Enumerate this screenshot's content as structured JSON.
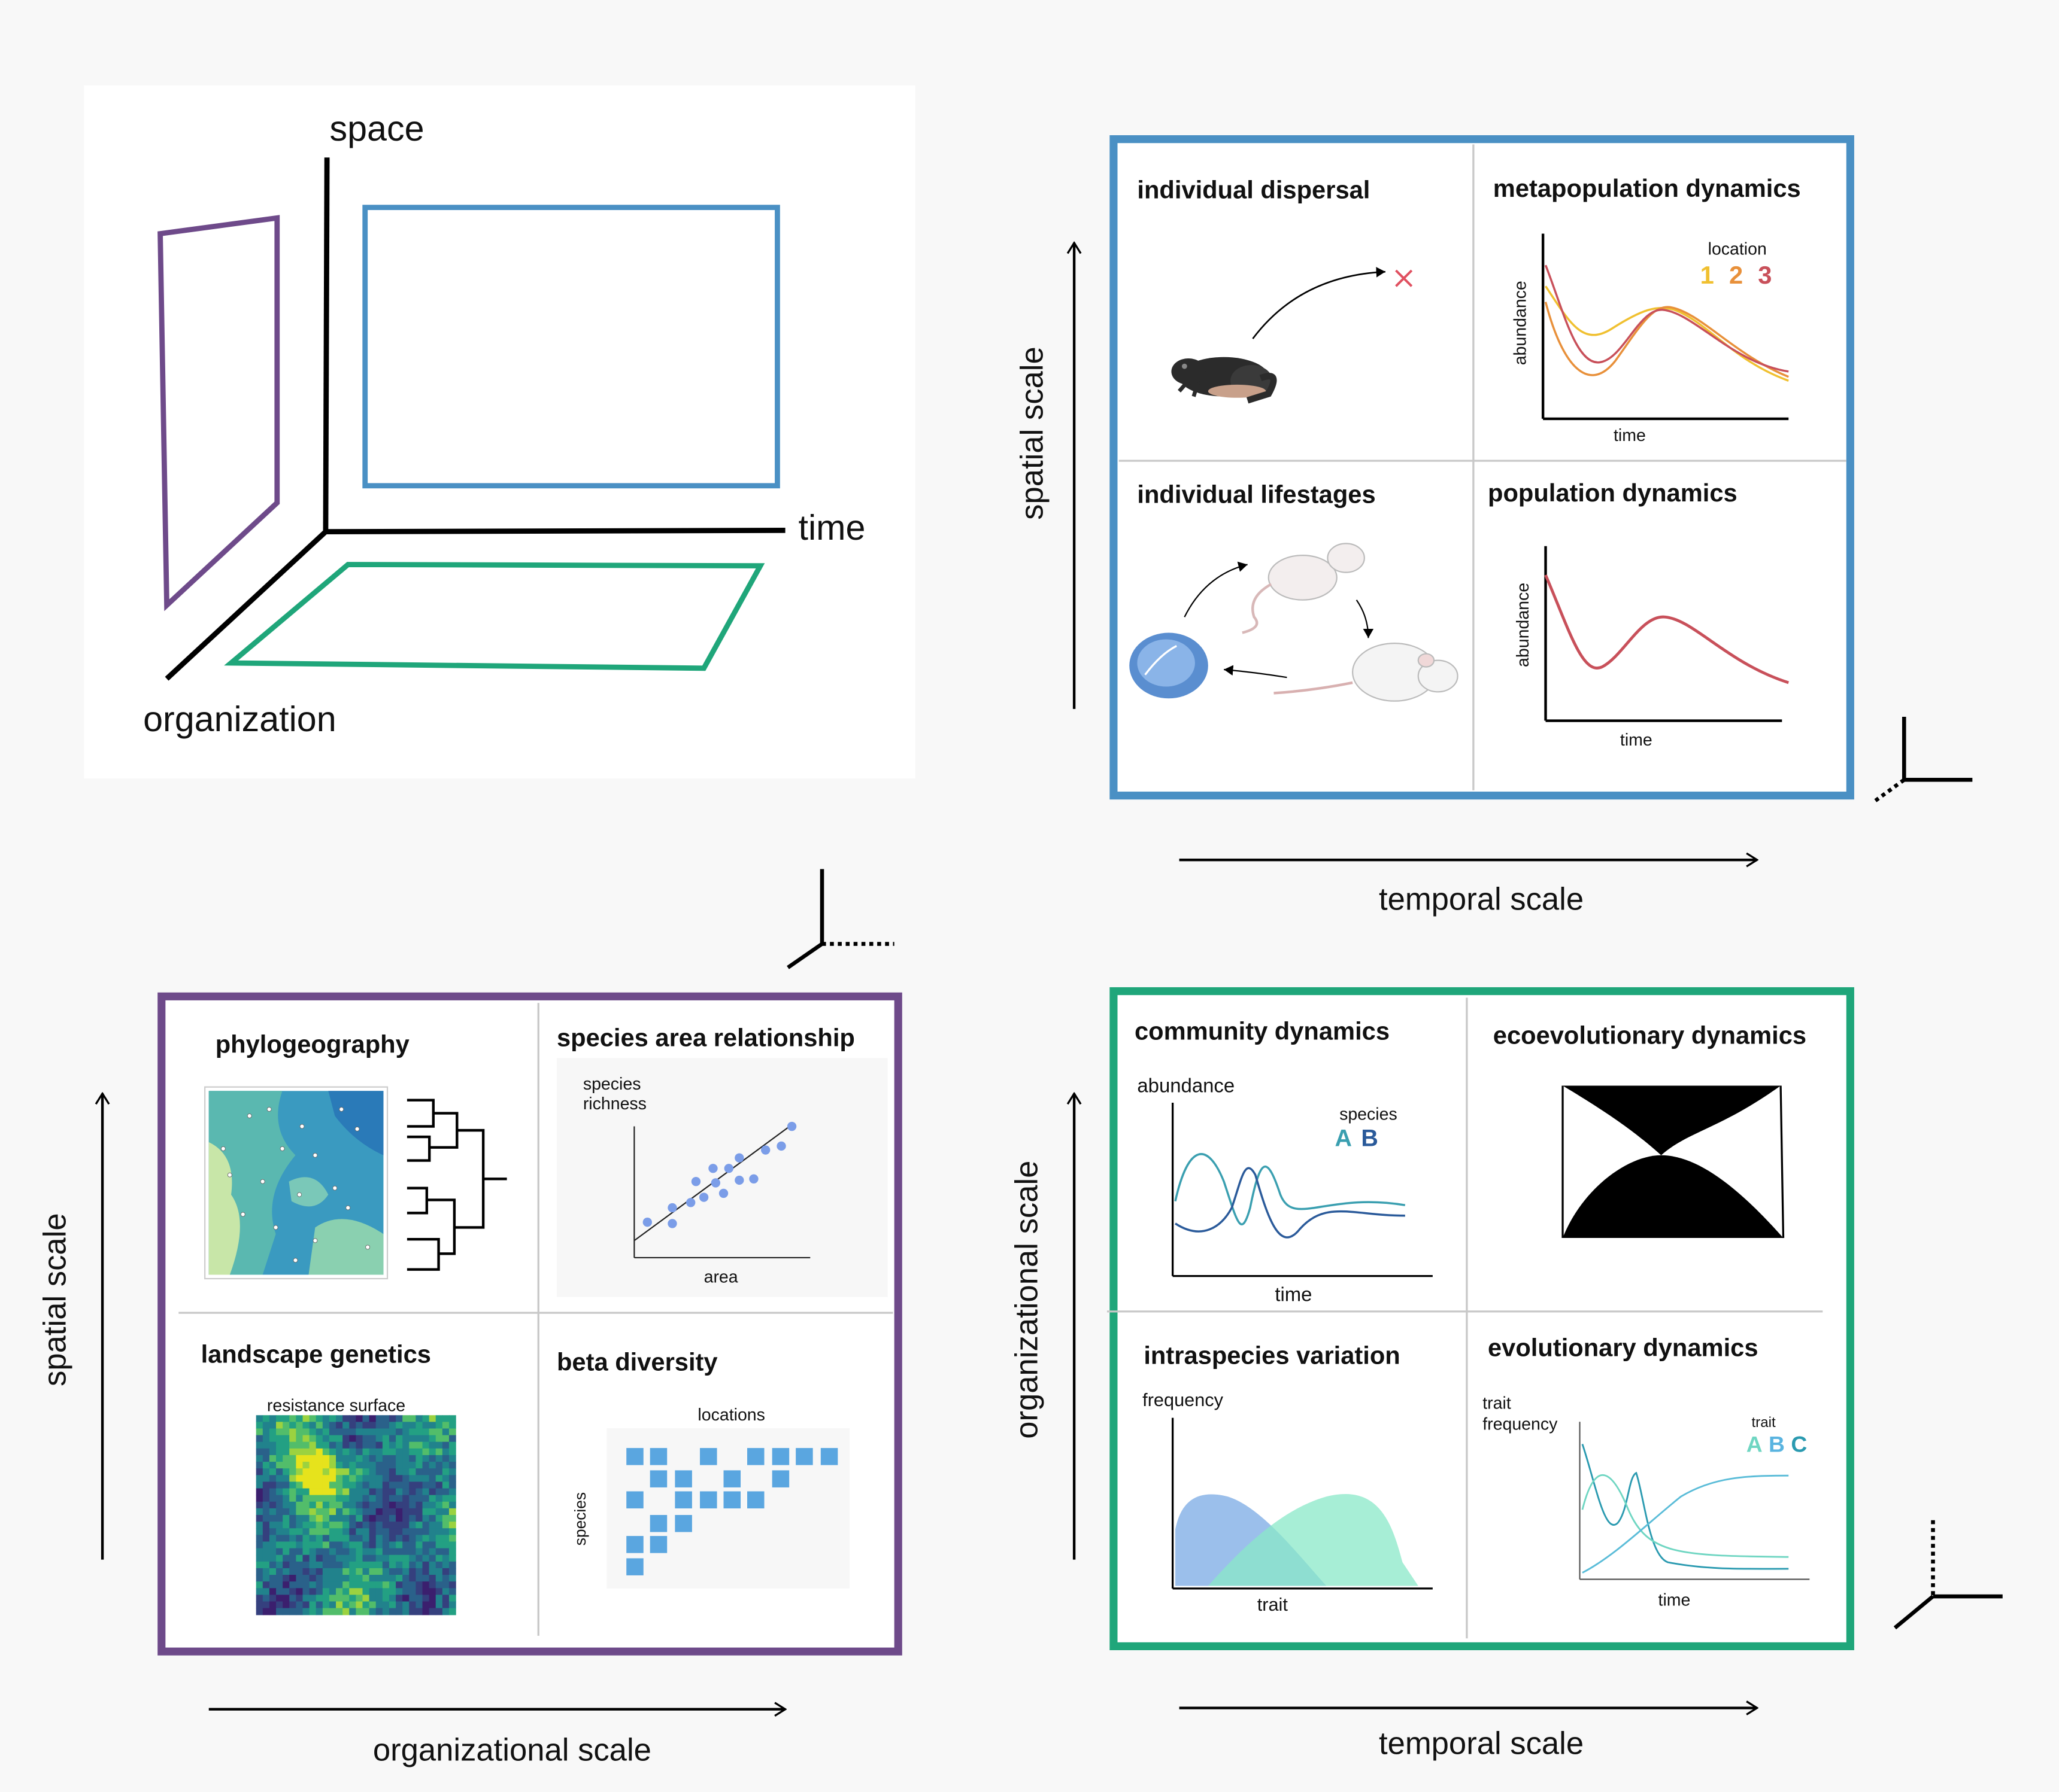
{
  "axes3d": {
    "space": "space",
    "time": "time",
    "organization": "organization"
  },
  "panel_tr": {
    "titles": [
      "individual dispersal",
      "metapopulation dynamics",
      "individual lifestages",
      "population dynamics"
    ],
    "y_axis": "spatial scale",
    "x_axis": "temporal scale",
    "meta": {
      "ylabel": "abundance",
      "xlabel": "time",
      "legend_title": "location",
      "legend": [
        "1",
        "2",
        "3"
      ]
    },
    "pop": {
      "ylabel": "abundance",
      "xlabel": "time"
    }
  },
  "panel_bl": {
    "titles": [
      "phylogeography",
      "species area relationship",
      "landscape genetics",
      "beta diversity"
    ],
    "y_axis": "spatial scale",
    "x_axis": "organizational scale",
    "sar": {
      "ylabel_1": "species",
      "ylabel_2": "richness",
      "xlabel": "area"
    },
    "resistance_label": "resistance surface",
    "beta": {
      "xlabel": "locations",
      "ylabel": "species"
    }
  },
  "panel_br": {
    "titles": [
      "community dynamics",
      "ecoevolutionary dynamics",
      "intraspecies variation",
      "evolutionary dynamics"
    ],
    "y_axis": "organizational scale",
    "x_axis": "temporal scale",
    "community": {
      "ylabel": "abundance",
      "xlabel": "time",
      "legend_title": "species",
      "legend": [
        "A",
        "B"
      ]
    },
    "intra": {
      "ylabel": "frequency",
      "xlabel": "trait"
    },
    "evo": {
      "ylabel_1": "trait",
      "ylabel_2": "frequency",
      "xlabel": "time",
      "legend_title": "trait",
      "legend": [
        "A",
        "B",
        "C"
      ]
    }
  },
  "colors": {
    "space_time": "#4a90c4",
    "space_org": "#6e4a8a",
    "org_time": "#1fa67a",
    "loc1": "#f0c030",
    "loc2": "#e8903a",
    "loc3": "#c8505a",
    "sp_a": "#3a9fb0",
    "sp_b": "#2a5a9a",
    "trait_a": "#6fd6c2",
    "trait_b": "#5ab4e0",
    "trait_c": "#2a9ab0"
  }
}
